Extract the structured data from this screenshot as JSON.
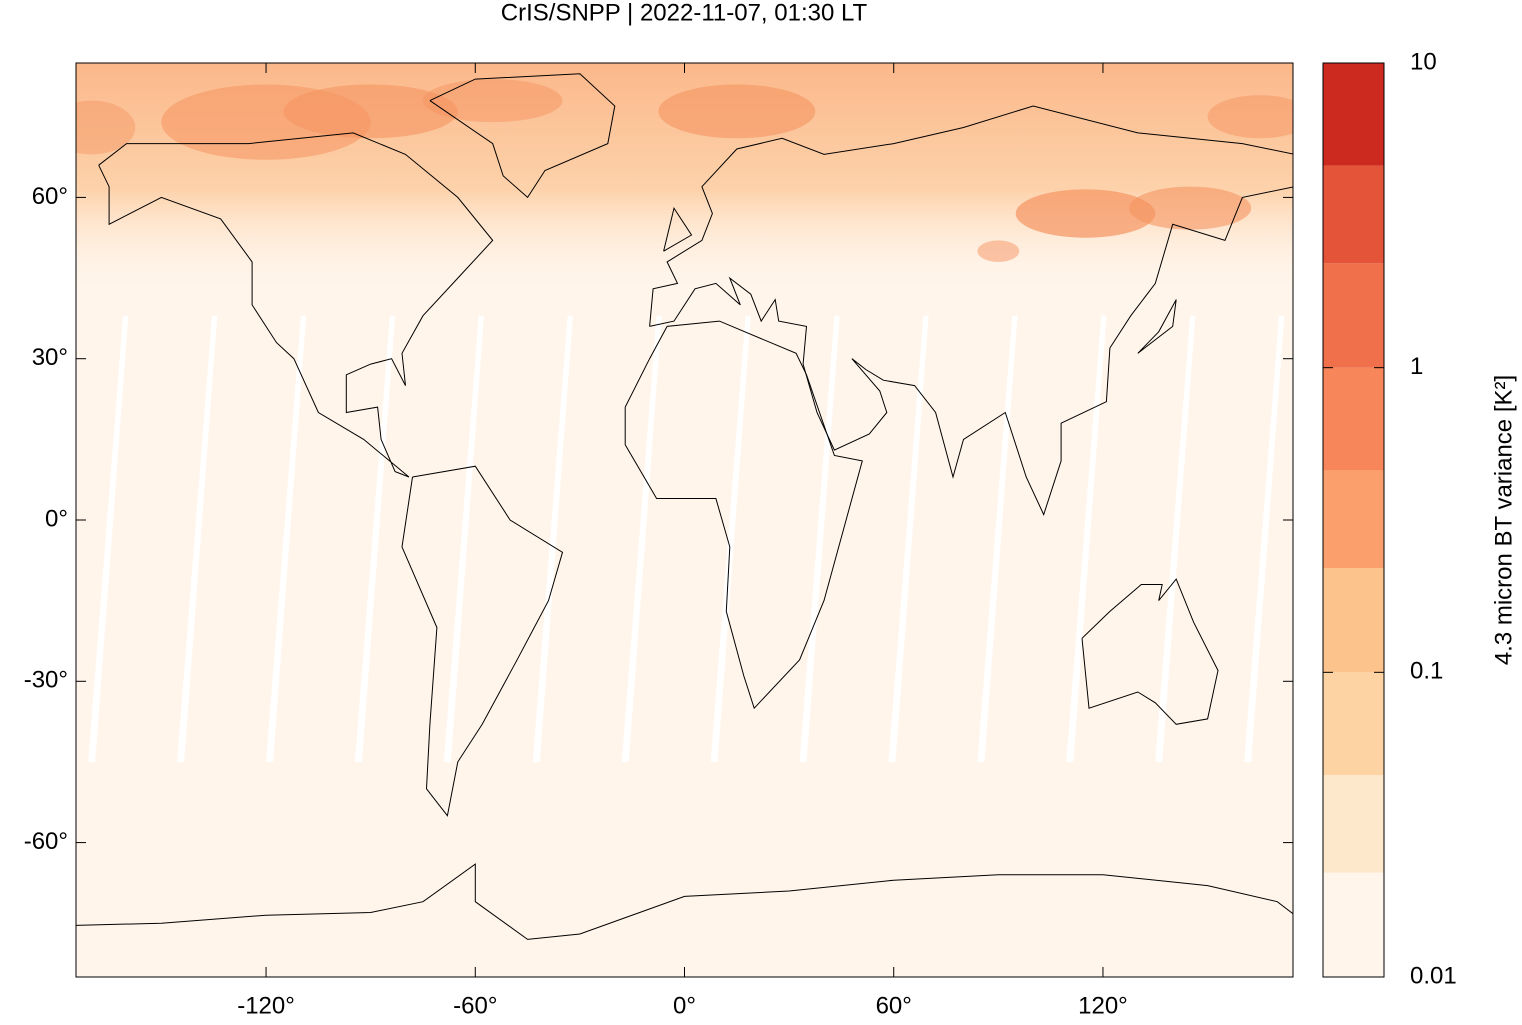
{
  "chart_data": {
    "type": "map",
    "title": "CrIS/SNPP | 2022-11-07, 01:30 LT",
    "xlim": [
      -174.5,
      174.5
    ],
    "ylim": [
      -85,
      85
    ],
    "xticks": [
      {
        "value": -120,
        "label": "-120°"
      },
      {
        "value": -60,
        "label": "-60°"
      },
      {
        "value": 0,
        "label": "0°"
      },
      {
        "value": 60,
        "label": "60°"
      },
      {
        "value": 120,
        "label": "120°"
      }
    ],
    "yticks": [
      {
        "value": 60,
        "label": "60°"
      },
      {
        "value": 30,
        "label": "30°"
      },
      {
        "value": 0,
        "label": "0°"
      },
      {
        "value": -30,
        "label": "-30°"
      },
      {
        "value": -60,
        "label": "-60°"
      }
    ],
    "colorbar": {
      "label": "4.3 micron BT variance [K²]",
      "log": true,
      "lim": [
        0.01,
        10
      ],
      "ticks": [
        0.01,
        0.1,
        1,
        10
      ],
      "levels": [
        0.01,
        0.022,
        0.046,
        0.1,
        0.22,
        0.46,
        1,
        2.2,
        4.6,
        10
      ],
      "colors": [
        "#fff5eb",
        "#fde8cb",
        "#fdd3a3",
        "#fcc38c",
        "#fba06c",
        "#f7875a",
        "#f0704b",
        "#e35438",
        "#cc2a1e",
        "#990000"
      ]
    }
  }
}
